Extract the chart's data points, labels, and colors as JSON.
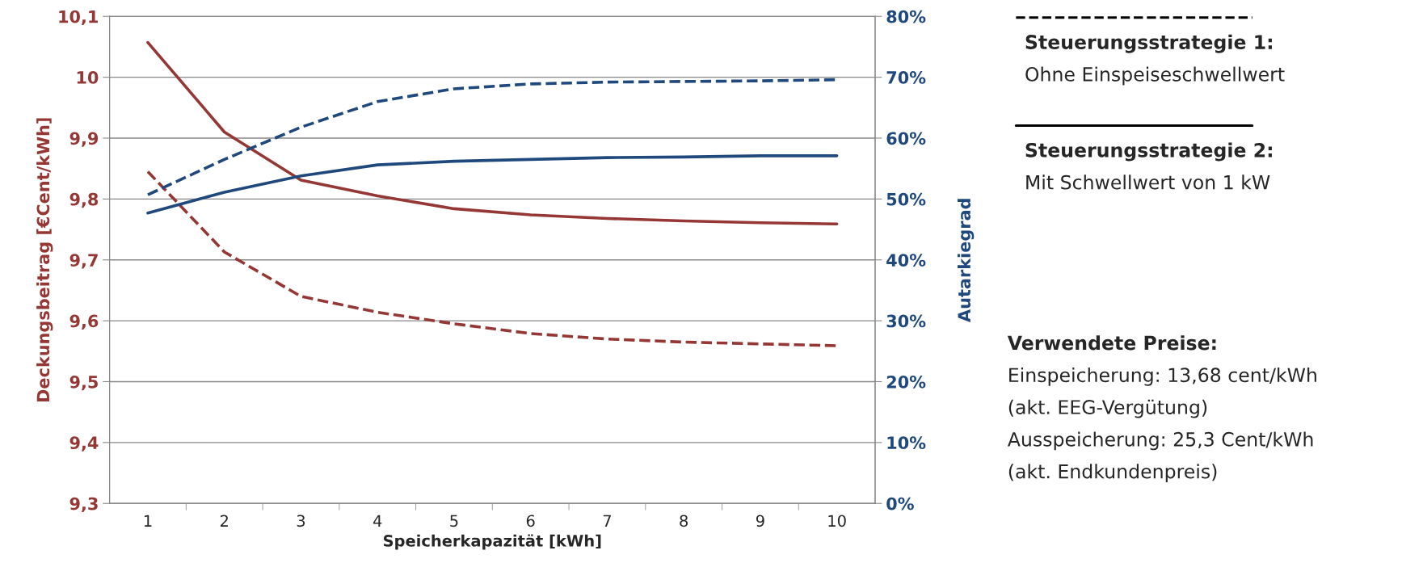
{
  "chart_data": {
    "type": "line",
    "xlabel": "Speicherkapazität [kWh]",
    "ylabel": "Deckungsbeitrag [€Cent/kWh]",
    "y2label": "Autarkiegrad",
    "categories": [
      "1",
      "2",
      "3",
      "4",
      "5",
      "6",
      "7",
      "8",
      "9",
      "10"
    ],
    "series": [
      {
        "color": "#953735",
        "line_style": "solid",
        "values": [
          10.057,
          9.91,
          9.831,
          9.805,
          9.784,
          9.774,
          9.768,
          9.764,
          9.761,
          9.759
        ]
      },
      {
        "color": "#953735",
        "line_style": "dashed",
        "values": [
          9.845,
          9.713,
          9.64,
          9.614,
          9.595,
          9.579,
          9.57,
          9.565,
          9.562,
          9.559
        ]
      },
      {
        "color": "#1f497d",
        "line_style": "dashed",
        "axis": "y2",
        "values": [
          50.7,
          56.5,
          61.8,
          66.0,
          68.1,
          68.9,
          69.2,
          69.3,
          69.4,
          69.6
        ]
      },
      {
        "color": "#1f497d",
        "line_style": "solid",
        "axis": "y2",
        "values": [
          47.7,
          51.1,
          53.8,
          55.6,
          56.2,
          56.5,
          56.8,
          56.9,
          57.1,
          57.1
        ]
      }
    ],
    "ylim": [
      9.3,
      10.1
    ],
    "yticks": [
      {
        "value": 9.3,
        "label": "9,3"
      },
      {
        "value": 9.4,
        "label": "9,4"
      },
      {
        "value": 9.5,
        "label": "9,5"
      },
      {
        "value": 9.6,
        "label": "9,6"
      },
      {
        "value": 9.7,
        "label": "9,7"
      },
      {
        "value": 9.8,
        "label": "9,8"
      },
      {
        "value": 9.9,
        "label": "9,9"
      },
      {
        "value": 10,
        "label": "10"
      },
      {
        "value": 10.1,
        "label": "10,1"
      }
    ],
    "y2lim": [
      0,
      80
    ],
    "y2ticks": [
      {
        "value": 0,
        "label": "0%"
      },
      {
        "value": 10,
        "label": "10%"
      },
      {
        "value": 20,
        "label": "20%"
      },
      {
        "value": 30,
        "label": "30%"
      },
      {
        "value": 40,
        "label": "40%"
      },
      {
        "value": 50,
        "label": "50%"
      },
      {
        "value": 60,
        "label": "60%"
      },
      {
        "value": 70,
        "label": "70%"
      },
      {
        "value": 80,
        "label": "80%"
      }
    ],
    "grid": "y",
    "annotations": [
      "Steuerungsstrategie 1:",
      "Ohne Einspeiseschwellwert",
      "Steuerungsstrategie 2:",
      "Mit Schwellwert von 1 kW",
      "Verwendete Preise:",
      "Einspeicherung: 13,68 cent/kWh",
      "(akt. EEG-Vergütung)",
      "Ausspeicherung: 25,3 Cent/kWh",
      "(akt. Endkundenpreis)"
    ]
  }
}
